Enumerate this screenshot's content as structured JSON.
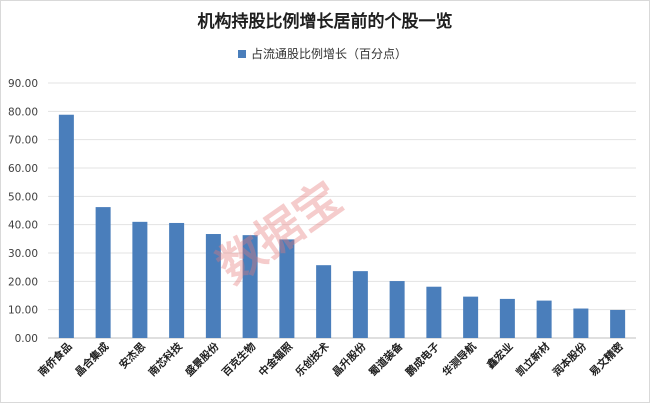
{
  "chart_data": {
    "type": "bar",
    "title": "机构持股比例增长居前的个股一览",
    "legend": {
      "position": "top",
      "entries": [
        "占流通股比例增长（百分点）"
      ]
    },
    "series": [
      {
        "name": "占流通股比例增长（百分点）",
        "color": "#4a7ebb",
        "values": [
          78.8,
          46.2,
          41.0,
          40.6,
          36.7,
          36.3,
          34.8,
          25.7,
          23.6,
          20.1,
          18.1,
          14.6,
          13.8,
          13.2,
          10.4,
          9.9
        ]
      }
    ],
    "categories": [
      "南侨食品",
      "晶合集成",
      "安杰思",
      "南芯科技",
      "盛景股份",
      "百克生物",
      "中金辐照",
      "乐创技术",
      "晶升股份",
      "蜀道装备",
      "鹏成电子",
      "华测导航",
      "鑫宏业",
      "凯立新材",
      "润本股份",
      "易文精密"
    ],
    "ylim": [
      0,
      90
    ],
    "yticks": [
      "0.00",
      "10.00",
      "20.00",
      "30.00",
      "40.00",
      "50.00",
      "60.00",
      "70.00",
      "80.00",
      "90.00"
    ],
    "grid": true,
    "xlabel": "",
    "ylabel": ""
  },
  "watermark": "数据宝"
}
